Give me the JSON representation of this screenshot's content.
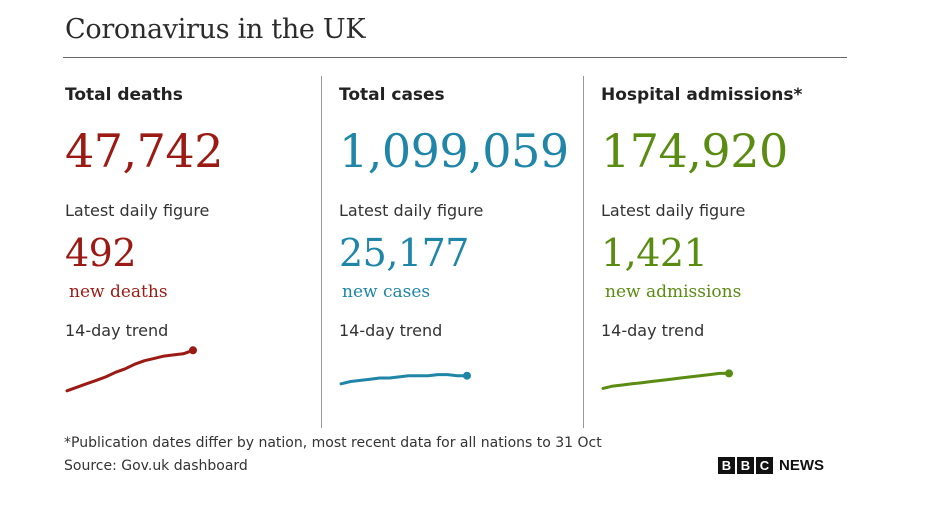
{
  "title": "Coronavirus in the UK",
  "colors": {
    "deaths": "#9b1b14",
    "cases": "#1f86a8",
    "admissions": "#5a8c12"
  },
  "columns": [
    {
      "heading": "Total deaths",
      "total": "47,742",
      "daily_label": "Latest daily figure",
      "daily": "492",
      "unit": "new deaths",
      "trend_label": "14-day trend"
    },
    {
      "heading": "Total cases",
      "total": "1,099,059",
      "daily_label": "Latest daily figure",
      "daily": "25,177",
      "unit": "new cases",
      "trend_label": "14-day trend"
    },
    {
      "heading": "Hospital admissions*",
      "total": "174,920",
      "daily_label": "Latest daily figure",
      "daily": "1,421",
      "unit": "new admissions",
      "trend_label": "14-day trend"
    }
  ],
  "footnote": "*Publication dates differ by nation, most recent data for all nations to 31 Oct",
  "source": "Source: Gov.uk dashboard",
  "brand": {
    "letters": [
      "B",
      "B",
      "C"
    ],
    "word": "NEWS"
  },
  "chart_data": [
    {
      "type": "line",
      "name": "Deaths 14-day trend",
      "x": [
        1,
        2,
        3,
        4,
        5,
        6,
        7,
        8,
        9,
        10,
        11,
        12,
        13,
        14
      ],
      "values": [
        8,
        11,
        14,
        17,
        20,
        24,
        27,
        31,
        34,
        36,
        38,
        39,
        40,
        43
      ]
    },
    {
      "type": "line",
      "name": "Cases 14-day trend",
      "x": [
        1,
        2,
        3,
        4,
        5,
        6,
        7,
        8,
        9,
        10,
        11,
        12,
        13,
        14
      ],
      "values": [
        14,
        16,
        17,
        18,
        19,
        19,
        20,
        21,
        21,
        21,
        22,
        22,
        21,
        21
      ]
    },
    {
      "type": "line",
      "name": "Admissions 14-day trend",
      "x": [
        1,
        2,
        3,
        4,
        5,
        6,
        7,
        8,
        9,
        10,
        11,
        12,
        13,
        14
      ],
      "values": [
        10,
        12,
        13,
        14,
        15,
        16,
        17,
        18,
        19,
        20,
        21,
        22,
        23,
        23
      ]
    }
  ]
}
